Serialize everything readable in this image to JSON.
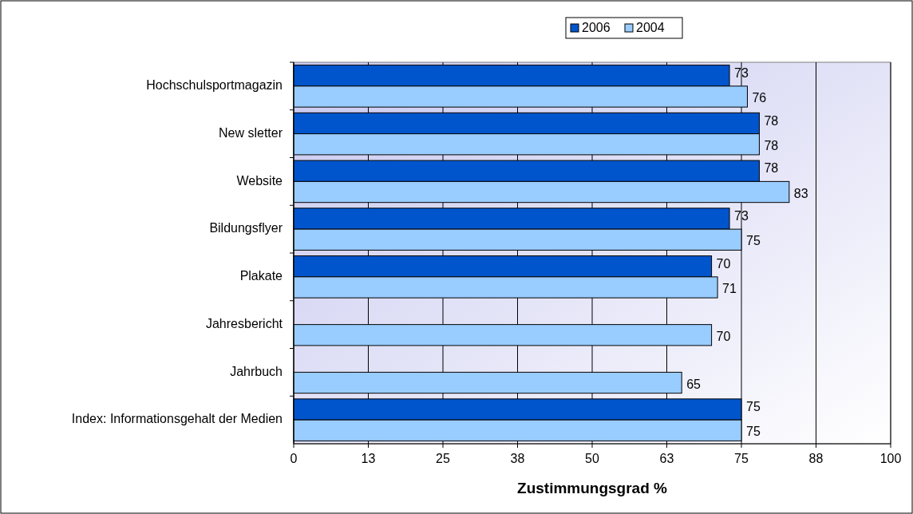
{
  "chart_data": {
    "type": "bar",
    "orientation": "horizontal",
    "xlabel": "Zustimmungsgrad %",
    "categories": [
      "Hochschulsportmagazin",
      "New sletter",
      "Website",
      "Bildungsflyer",
      "Plakate",
      "Jahresbericht",
      "Jahrbuch",
      "Index: Informationsgehalt der Medien"
    ],
    "series": [
      {
        "name": "2006",
        "color": "#0055cc",
        "values": [
          73,
          78,
          78,
          73,
          70,
          null,
          null,
          75
        ]
      },
      {
        "name": "2004",
        "color": "#99ccff",
        "values": [
          76,
          78,
          83,
          75,
          71,
          70,
          65,
          75
        ]
      }
    ],
    "xlim": [
      0,
      100
    ],
    "xticks": [
      0,
      {
        "value": 12.5,
        "label": "13"
      },
      25,
      {
        "value": 37.5,
        "label": "38"
      },
      50,
      {
        "value": 62.5,
        "label": "63"
      },
      75,
      {
        "value": 87.5,
        "label": "88"
      },
      100
    ],
    "grid": "x",
    "legend": "top",
    "data_labels": true
  }
}
